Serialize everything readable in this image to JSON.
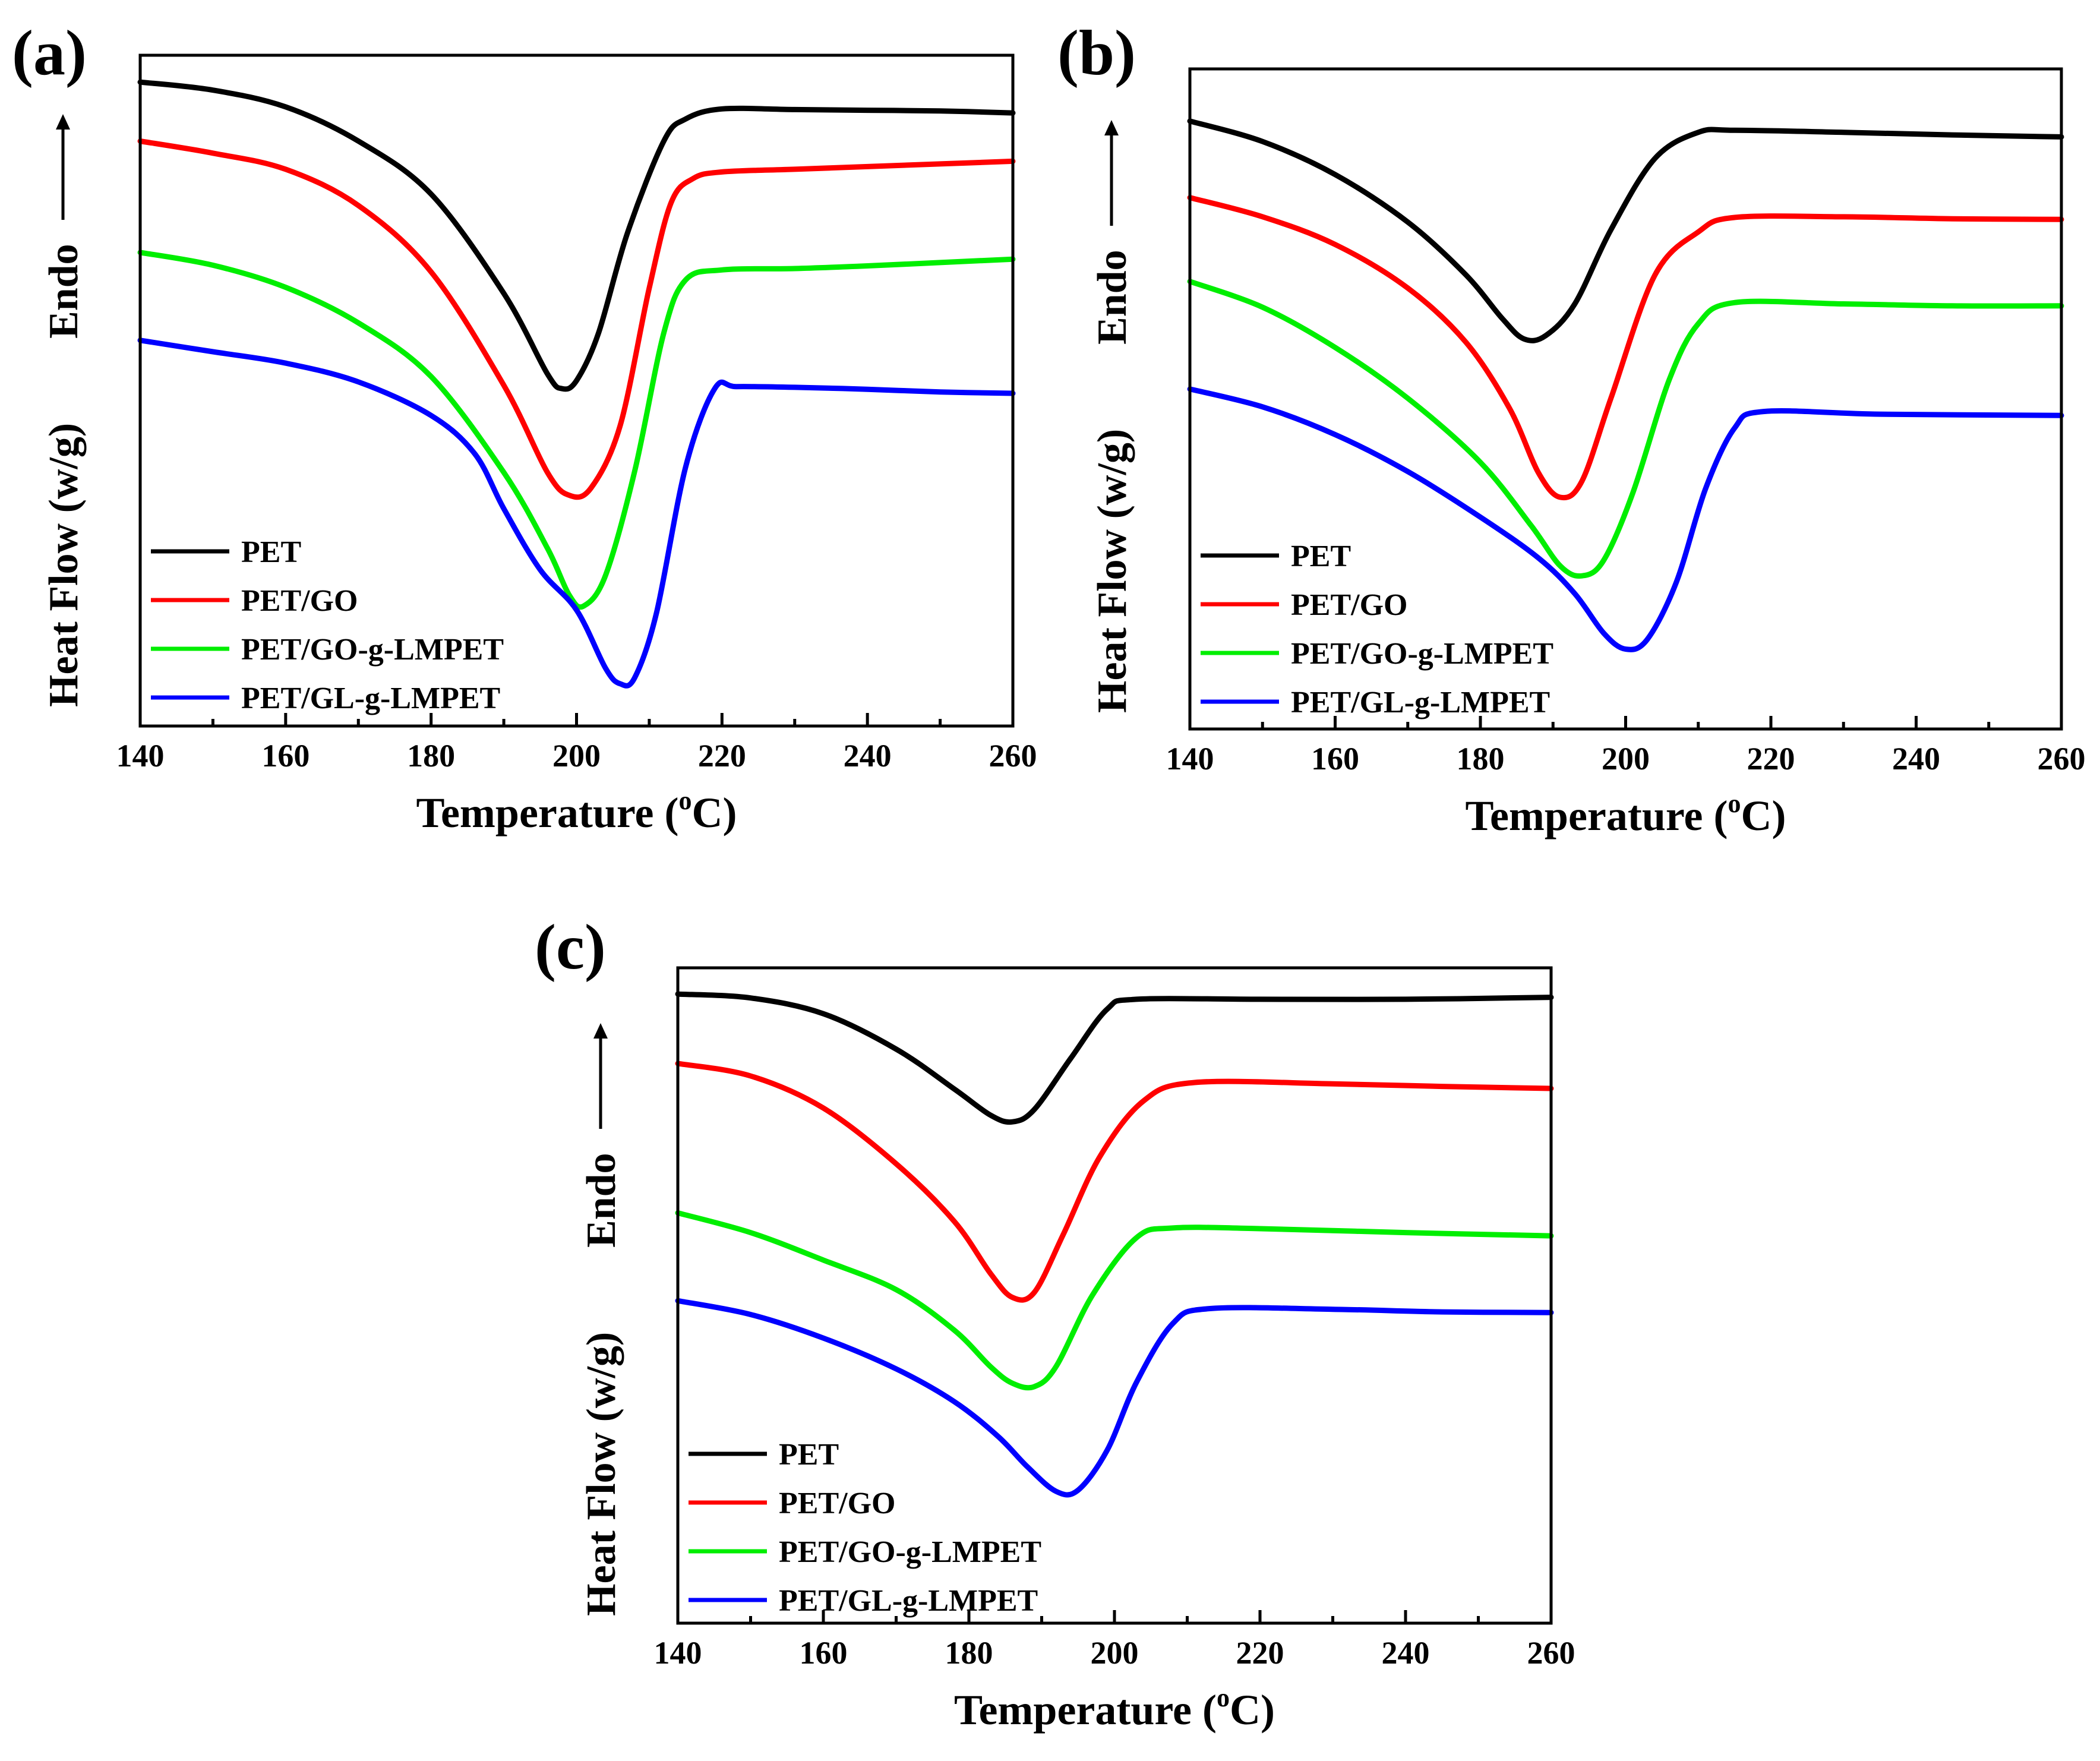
{
  "colors": {
    "PET": "#000000",
    "PET/GO": "#ff0000",
    "PET/GO-g-LMPET": "#00ee00",
    "PET/GL-g-LMPET": "#0000ff"
  },
  "chart_data": [
    {
      "type": "line",
      "panel_label": "(a)",
      "xlabel": "Temperature (",
      "xlabel_degree": "o",
      "xlabel_unit": "C)",
      "ylabel": "Heat Flow (w/g)",
      "ylabel_endo": "Endo",
      "xlim": [
        140,
        260
      ],
      "ylim": [
        0,
        100
      ],
      "xticks": [
        140,
        160,
        180,
        200,
        220,
        240,
        260
      ],
      "legend_position": "bottom-left",
      "series": [
        {
          "name": "PET",
          "points": [
            [
              140,
              96
            ],
            [
              150,
              94.8
            ],
            [
              160,
              92.3
            ],
            [
              170,
              87.2
            ],
            [
              180,
              79.3
            ],
            [
              190,
              64.5
            ],
            [
              196,
              52.5
            ],
            [
              198,
              50.3
            ],
            [
              200,
              51.5
            ],
            [
              203,
              58.5
            ],
            [
              207,
              73.5
            ],
            [
              212,
              87.2
            ],
            [
              215,
              90.5
            ],
            [
              220,
              92
            ],
            [
              230,
              91.9
            ],
            [
              240,
              91.8
            ],
            [
              250,
              91.7
            ],
            [
              260,
              91.4
            ]
          ]
        },
        {
          "name": "PET/GO",
          "points": [
            [
              140,
              87.2
            ],
            [
              150,
              85.4
            ],
            [
              160,
              83
            ],
            [
              170,
              77.6
            ],
            [
              180,
              67.7
            ],
            [
              190,
              50.8
            ],
            [
              196,
              37.8
            ],
            [
              199,
              34.4
            ],
            [
              202,
              35.5
            ],
            [
              206,
              44.8
            ],
            [
              210,
              65.3
            ],
            [
              213,
              78
            ],
            [
              216,
              81.6
            ],
            [
              220,
              82.6
            ],
            [
              230,
              83
            ],
            [
              240,
              83.4
            ],
            [
              250,
              83.8
            ],
            [
              260,
              84.2
            ]
          ]
        },
        {
          "name": "PET/GO-g-LMPET",
          "points": [
            [
              140,
              70.6
            ],
            [
              150,
              68.7
            ],
            [
              160,
              65.4
            ],
            [
              170,
              60.1
            ],
            [
              180,
              52.1
            ],
            [
              190,
              37.8
            ],
            [
              196,
              26.5
            ],
            [
              199,
              19.5
            ],
            [
              201,
              17.9
            ],
            [
              204,
              22.5
            ],
            [
              208,
              38
            ],
            [
              212,
              58.6
            ],
            [
              215,
              66.5
            ],
            [
              220,
              68
            ],
            [
              230,
              68.2
            ],
            [
              240,
              68.6
            ],
            [
              250,
              69.1
            ],
            [
              260,
              69.6
            ]
          ]
        },
        {
          "name": "PET/GL-g-LMPET",
          "points": [
            [
              140,
              57.5
            ],
            [
              150,
              55.8
            ],
            [
              160,
              54.1
            ],
            [
              170,
              51.3
            ],
            [
              180,
              46.3
            ],
            [
              186,
              40.6
            ],
            [
              190,
              32.4
            ],
            [
              195,
              23.3
            ],
            [
              200,
              17.3
            ],
            [
              204,
              8.6
            ],
            [
              206,
              6.3
            ],
            [
              208,
              7.2
            ],
            [
              211,
              16.9
            ],
            [
              215,
              38.6
            ],
            [
              219,
              50.3
            ],
            [
              222,
              50.6
            ],
            [
              230,
              50.5
            ],
            [
              240,
              50.2
            ],
            [
              250,
              49.8
            ],
            [
              260,
              49.6
            ]
          ]
        }
      ],
      "legend_labels": [
        "PET",
        "PET/GO",
        "PET/GO-g-LMPET",
        "PET/GL-g-LMPET"
      ]
    },
    {
      "type": "line",
      "panel_label": "(b)",
      "xlabel": "Temperature (",
      "xlabel_degree": "o",
      "xlabel_unit": "C)",
      "ylabel": "Heat Flow (w/g)",
      "ylabel_endo": "Endo",
      "xlim": [
        140,
        260
      ],
      "ylim": [
        0,
        100
      ],
      "xticks": [
        140,
        160,
        180,
        200,
        220,
        240,
        260
      ],
      "legend_position": "bottom-left",
      "series": [
        {
          "name": "PET",
          "points": [
            [
              140,
              92.1
            ],
            [
              150,
              89
            ],
            [
              160,
              84
            ],
            [
              170,
              76.8
            ],
            [
              178,
              68.8
            ],
            [
              183,
              62.2
            ],
            [
              186,
              59.1
            ],
            [
              189,
              59.6
            ],
            [
              193,
              64.4
            ],
            [
              198,
              75.7
            ],
            [
              204,
              86.4
            ],
            [
              210,
              90.4
            ],
            [
              215,
              90.7
            ],
            [
              230,
              90.4
            ],
            [
              245,
              90
            ],
            [
              260,
              89.7
            ]
          ]
        },
        {
          "name": "PET/GO",
          "points": [
            [
              140,
              80.5
            ],
            [
              150,
              77.6
            ],
            [
              160,
              73.4
            ],
            [
              170,
              66.8
            ],
            [
              178,
              58.6
            ],
            [
              184,
              48.6
            ],
            [
              188,
              38.8
            ],
            [
              191,
              35.1
            ],
            [
              194,
              37.6
            ],
            [
              198,
              50.2
            ],
            [
              204,
              68.7
            ],
            [
              210,
              75.3
            ],
            [
              215,
              77.5
            ],
            [
              230,
              77.6
            ],
            [
              245,
              77.3
            ],
            [
              260,
              77.2
            ]
          ]
        },
        {
          "name": "PET/GO-g-LMPET",
          "points": [
            [
              140,
              67.8
            ],
            [
              150,
              63.9
            ],
            [
              160,
              57.8
            ],
            [
              170,
              50.1
            ],
            [
              180,
              40.4
            ],
            [
              187,
              30.8
            ],
            [
              191,
              24.7
            ],
            [
              194,
              23.2
            ],
            [
              197,
              25.6
            ],
            [
              201,
              35.8
            ],
            [
              206,
              52.9
            ],
            [
              210,
              61.4
            ],
            [
              215,
              64.6
            ],
            [
              230,
              64.4
            ],
            [
              245,
              64.1
            ],
            [
              260,
              64.1
            ]
          ]
        },
        {
          "name": "PET/GL-g-LMPET",
          "points": [
            [
              140,
              51.5
            ],
            [
              150,
              48.8
            ],
            [
              160,
              44.6
            ],
            [
              170,
              39
            ],
            [
              180,
              32.1
            ],
            [
              188,
              25.9
            ],
            [
              193,
              20.5
            ],
            [
              197,
              14.5
            ],
            [
              200,
              12.1
            ],
            [
              203,
              13.6
            ],
            [
              207,
              22.3
            ],
            [
              211,
              36.4
            ],
            [
              215,
              45.6
            ],
            [
              219,
              48.1
            ],
            [
              235,
              47.7
            ],
            [
              260,
              47.5
            ]
          ]
        }
      ],
      "legend_labels": [
        "PET",
        "PET/GO",
        "PET/GO-g-LMPET",
        "PET/GL-g-LMPET"
      ]
    },
    {
      "type": "line",
      "panel_label": "(c)",
      "xlabel": "Temperature (",
      "xlabel_degree": "o",
      "xlabel_unit": "C)",
      "ylabel": "Heat Flow (w/g)",
      "ylabel_endo": "Endo",
      "xlim": [
        140,
        260
      ],
      "ylim": [
        0,
        100
      ],
      "xticks": [
        140,
        160,
        180,
        200,
        220,
        240,
        260
      ],
      "legend_position": "bottom-left",
      "series": [
        {
          "name": "PET",
          "points": [
            [
              140,
              96
            ],
            [
              150,
              95.4
            ],
            [
              160,
              93
            ],
            [
              170,
              87.6
            ],
            [
              178,
              81.5
            ],
            [
              183,
              77.5
            ],
            [
              186,
              76.5
            ],
            [
              189,
              78.4
            ],
            [
              194,
              86.2
            ],
            [
              199,
              93.7
            ],
            [
              203,
              95.2
            ],
            [
              220,
              95.2
            ],
            [
              240,
              95.2
            ],
            [
              260,
              95.5
            ]
          ]
        },
        {
          "name": "PET/GO",
          "points": [
            [
              140,
              85.4
            ],
            [
              150,
              83.5
            ],
            [
              160,
              78.6
            ],
            [
              170,
              70.1
            ],
            [
              178,
              61.3
            ],
            [
              183,
              53.3
            ],
            [
              186,
              49.7
            ],
            [
              189,
              50.5
            ],
            [
              193,
              59.4
            ],
            [
              198,
              71.2
            ],
            [
              204,
              79.7
            ],
            [
              211,
              82.5
            ],
            [
              230,
              82.3
            ],
            [
              245,
              81.9
            ],
            [
              260,
              81.6
            ]
          ]
        },
        {
          "name": "PET/GO-g-LMPET",
          "points": [
            [
              140,
              62.6
            ],
            [
              150,
              59.6
            ],
            [
              160,
              55.4
            ],
            [
              170,
              50.9
            ],
            [
              178,
              44.7
            ],
            [
              183,
              39.1
            ],
            [
              186,
              36.6
            ],
            [
              189,
              36.1
            ],
            [
              192,
              39.2
            ],
            [
              197,
              50.1
            ],
            [
              203,
              58.8
            ],
            [
              208,
              60.3
            ],
            [
              220,
              60.2
            ],
            [
              240,
              59.6
            ],
            [
              260,
              59.1
            ]
          ]
        },
        {
          "name": "PET/GL-g-LMPET",
          "points": [
            [
              140,
              49.2
            ],
            [
              150,
              47.1
            ],
            [
              160,
              43.5
            ],
            [
              170,
              38.8
            ],
            [
              178,
              33.8
            ],
            [
              184,
              28.5
            ],
            [
              188,
              23.9
            ],
            [
              192,
              20.1
            ],
            [
              195,
              20.3
            ],
            [
              199,
              26.4
            ],
            [
              203,
              36.7
            ],
            [
              208,
              45.7
            ],
            [
              213,
              48
            ],
            [
              230,
              47.9
            ],
            [
              245,
              47.5
            ],
            [
              260,
              47.4
            ]
          ]
        }
      ],
      "legend_labels": [
        "PET",
        "PET/GO",
        "PET/GO-g-LMPET",
        "PET/GL-g-LMPET"
      ]
    }
  ]
}
